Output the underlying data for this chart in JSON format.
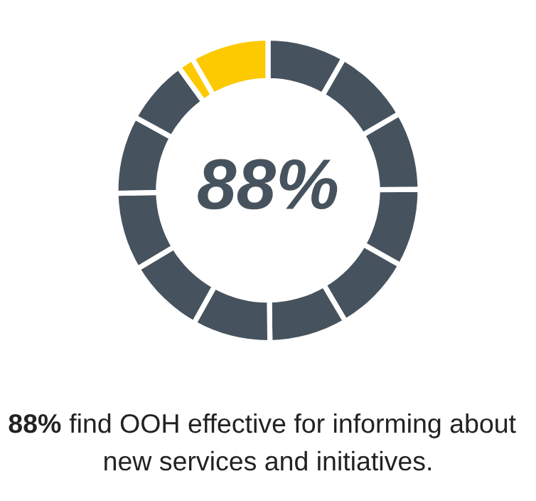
{
  "chart_data": {
    "type": "donut",
    "categories": [
      null,
      null,
      null,
      null,
      null,
      null,
      null,
      null,
      null,
      null,
      null,
      null,
      null
    ],
    "values": [
      8.3,
      8.3,
      8.3,
      8.3,
      8.3,
      8.3,
      8.3,
      8.3,
      8.3,
      8.3,
      7,
      1.7,
      8.3
    ],
    "colors": [
      "#46535e",
      "#46535e",
      "#46535e",
      "#46535e",
      "#46535e",
      "#46535e",
      "#46535e",
      "#46535e",
      "#46535e",
      "#46535e",
      "#46535e",
      "#fdc900",
      "#fdc900"
    ],
    "annotations": [
      "88%",
      "88% find OOH effective for informing about new services and initiatives."
    ],
    "legend": false
  }
}
